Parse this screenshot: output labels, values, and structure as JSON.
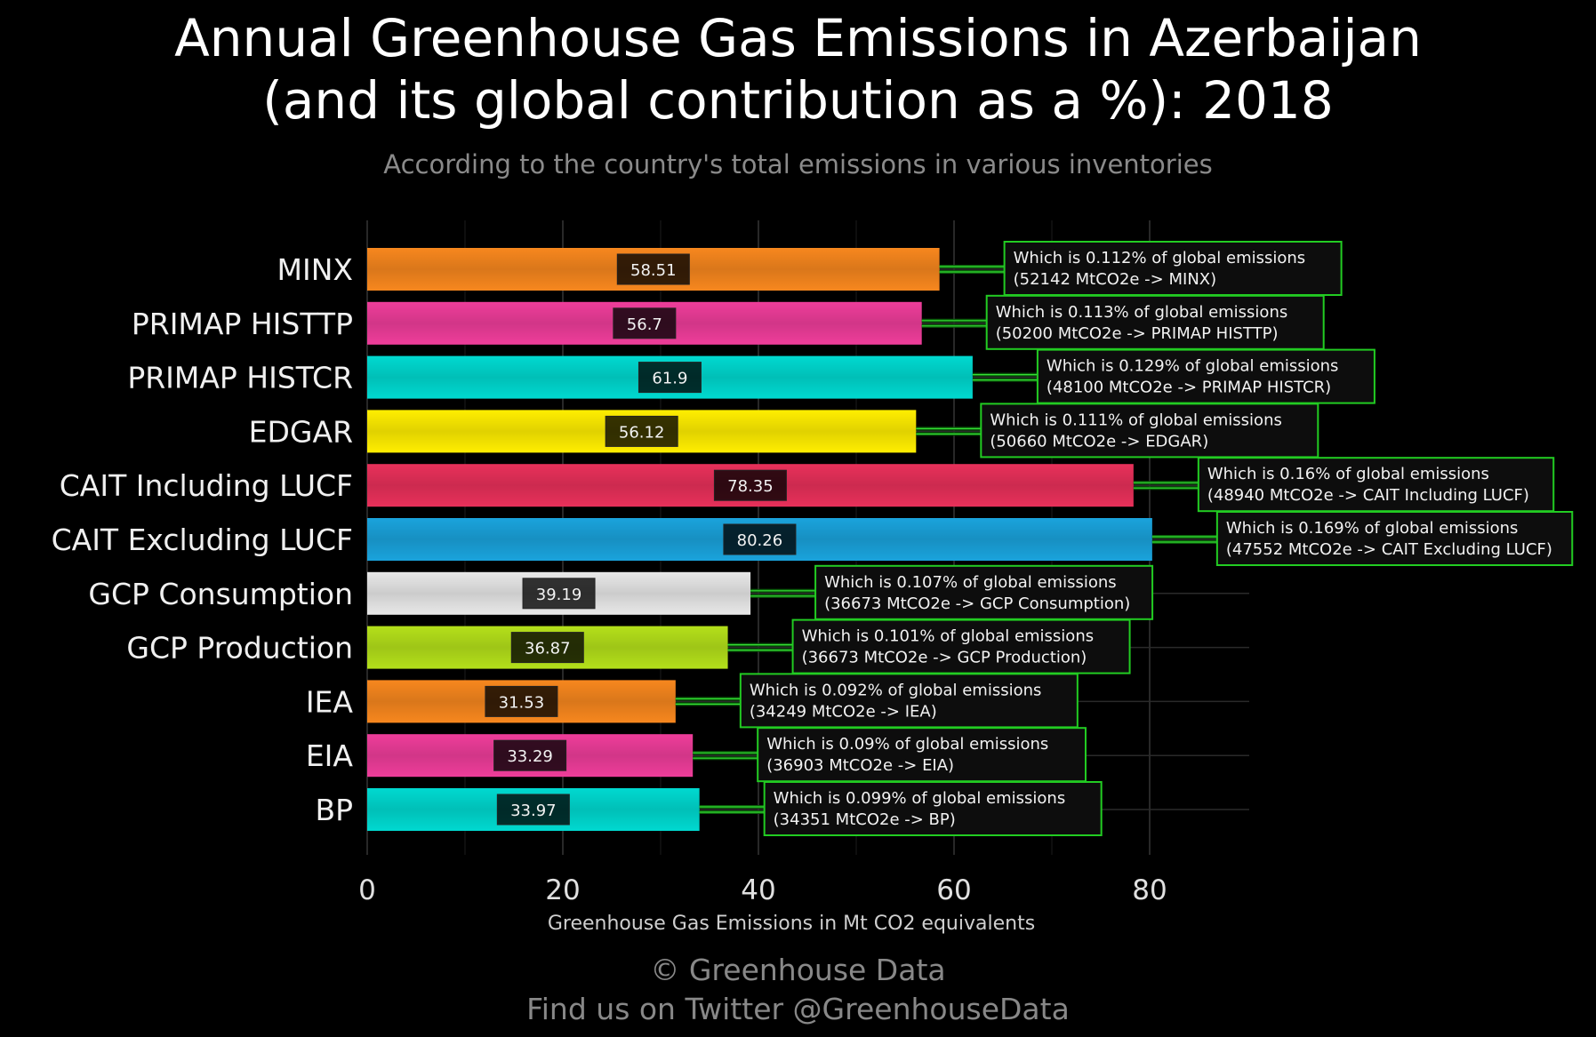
{
  "header": {
    "title_line1": "Annual Greenhouse Gas Emissions in Azerbaijan",
    "title_line2": "(and its global contribution as a %): 2018",
    "subtitle": "According to the country's total emissions in various inventories"
  },
  "footer": {
    "credit": "© Greenhouse Data",
    "twitter": "Find us on Twitter @GreenhouseData"
  },
  "chart_data": {
    "type": "bar",
    "orientation": "horizontal",
    "title": "Annual Greenhouse Gas Emissions in Azerbaijan (and its global contribution as a %): 2018",
    "subtitle": "According to the country's total emissions in various inventories",
    "xlabel": "Greenhouse Gas Emissions in Mt CO2 equivalents",
    "ylabel": "",
    "xlim": [
      0,
      90
    ],
    "xticks": [
      0,
      20,
      40,
      60,
      80
    ],
    "grid": true,
    "categories": [
      "MINX",
      "PRIMAP HISTTP",
      "PRIMAP HISTCR",
      "EDGAR",
      "CAIT Including LUCF",
      "CAIT Excluding LUCF",
      "GCP Consumption",
      "GCP Production",
      "IEA",
      "EIA",
      "BP"
    ],
    "values": [
      58.51,
      56.7,
      61.9,
      56.12,
      78.35,
      80.26,
      39.19,
      36.87,
      31.53,
      33.29,
      33.97
    ],
    "value_labels": [
      "58.51",
      "56.7",
      "61.9",
      "56.12",
      "78.35",
      "80.26",
      "39.19",
      "36.87",
      "31.53",
      "33.29",
      "33.97"
    ],
    "colors": [
      "#f7871e",
      "#ee3d9a",
      "#00d9d0",
      "#ffee00",
      "#e8305a",
      "#1aa3dc",
      "#e8e8e8",
      "#b4e01a",
      "#f7871e",
      "#ee3d9a",
      "#00d9d0"
    ],
    "annotations": [
      {
        "line1": "Which is 0.112% of global emissions",
        "line2": "(52142 MtCO2e -> MINX)"
      },
      {
        "line1": "Which is 0.113% of global emissions",
        "line2": "(50200 MtCO2e -> PRIMAP HISTTP)"
      },
      {
        "line1": "Which is 0.129% of global emissions",
        "line2": "(48100 MtCO2e -> PRIMAP HISTCR)"
      },
      {
        "line1": "Which is 0.111% of global emissions",
        "line2": "(50660 MtCO2e -> EDGAR)"
      },
      {
        "line1": "Which is 0.16% of global emissions",
        "line2": "(48940 MtCO2e -> CAIT Including LUCF)"
      },
      {
        "line1": "Which is 0.169% of global emissions",
        "line2": "(47552 MtCO2e -> CAIT Excluding LUCF)"
      },
      {
        "line1": "Which is 0.107% of global emissions",
        "line2": "(36673 MtCO2e -> GCP Consumption)"
      },
      {
        "line1": "Which is 0.101% of global emissions",
        "line2": "(36673 MtCO2e -> GCP Production)"
      },
      {
        "line1": "Which is 0.092% of global emissions",
        "line2": "(34249 MtCO2e -> IEA)"
      },
      {
        "line1": "Which is 0.09% of global emissions",
        "line2": "(36903 MtCO2e -> EIA)"
      },
      {
        "line1": "Which is 0.099% of global emissions",
        "line2": "(34351 MtCO2e -> BP)"
      }
    ]
  }
}
